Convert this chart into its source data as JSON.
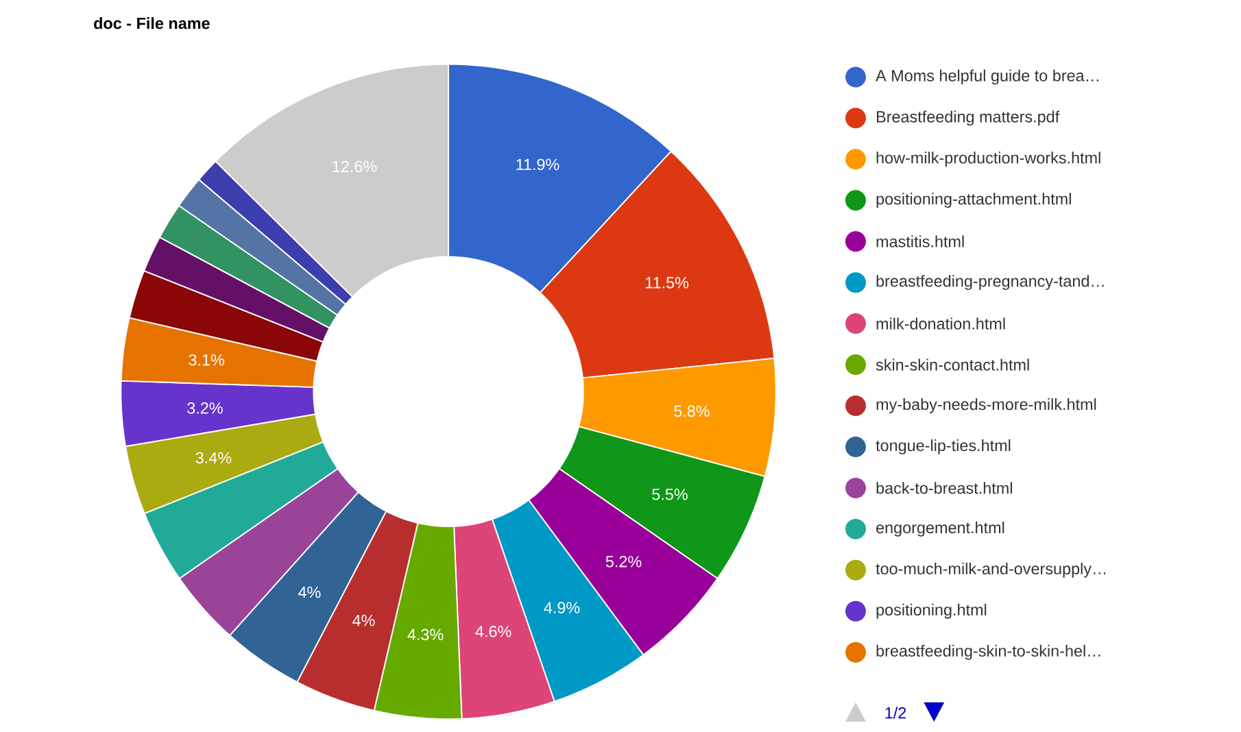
{
  "chart_data": {
    "type": "donut",
    "title": "doc - File name",
    "categories": [
      "A Moms helpful guide to brea…",
      "Breastfeeding matters.pdf",
      "how-milk-production-works.html",
      "positioning-attachment.html",
      "mastitis.html",
      "breastfeeding-pregnancy-tand…",
      "milk-donation.html",
      "skin-skin-contact.html",
      "my-baby-needs-more-milk.html",
      "tongue-lip-ties.html",
      "back-to-breast.html",
      "engorgement.html",
      "too-much-milk-and-oversupply…",
      "positioning.html",
      "breastfeeding-skin-to-skin-hel…",
      null,
      null,
      null,
      null,
      null,
      null
    ],
    "values": [
      11.9,
      11.5,
      5.8,
      5.5,
      5.2,
      4.9,
      4.6,
      4.3,
      4,
      4,
      3.7,
      3.6,
      3.4,
      3.2,
      3.1,
      2.4,
      1.8,
      1.8,
      1.6,
      1.2,
      12.6
    ],
    "value_labels": [
      "11.9%",
      "11.5%",
      "5.8%",
      "5.5%",
      "5.2%",
      "4.9%",
      "4.6%",
      "4.3%",
      "4%",
      "4%",
      null,
      null,
      "3.4%",
      "3.2%",
      "3.1%",
      null,
      null,
      null,
      null,
      null,
      "12.6%"
    ],
    "colors": [
      "#3366cc",
      "#dc3912",
      "#ff9900",
      "#109618",
      "#990099",
      "#0099c6",
      "#dd4477",
      "#66aa00",
      "#b82e2e",
      "#316395",
      "#994499",
      "#22aa99",
      "#aaaa11",
      "#6633cc",
      "#e67300",
      "#8b0707",
      "#651067",
      "#329262",
      "#5574a6",
      "#3b3eac",
      "#cccccc"
    ],
    "legend": "right",
    "annotations": [
      "1/2"
    ]
  }
}
